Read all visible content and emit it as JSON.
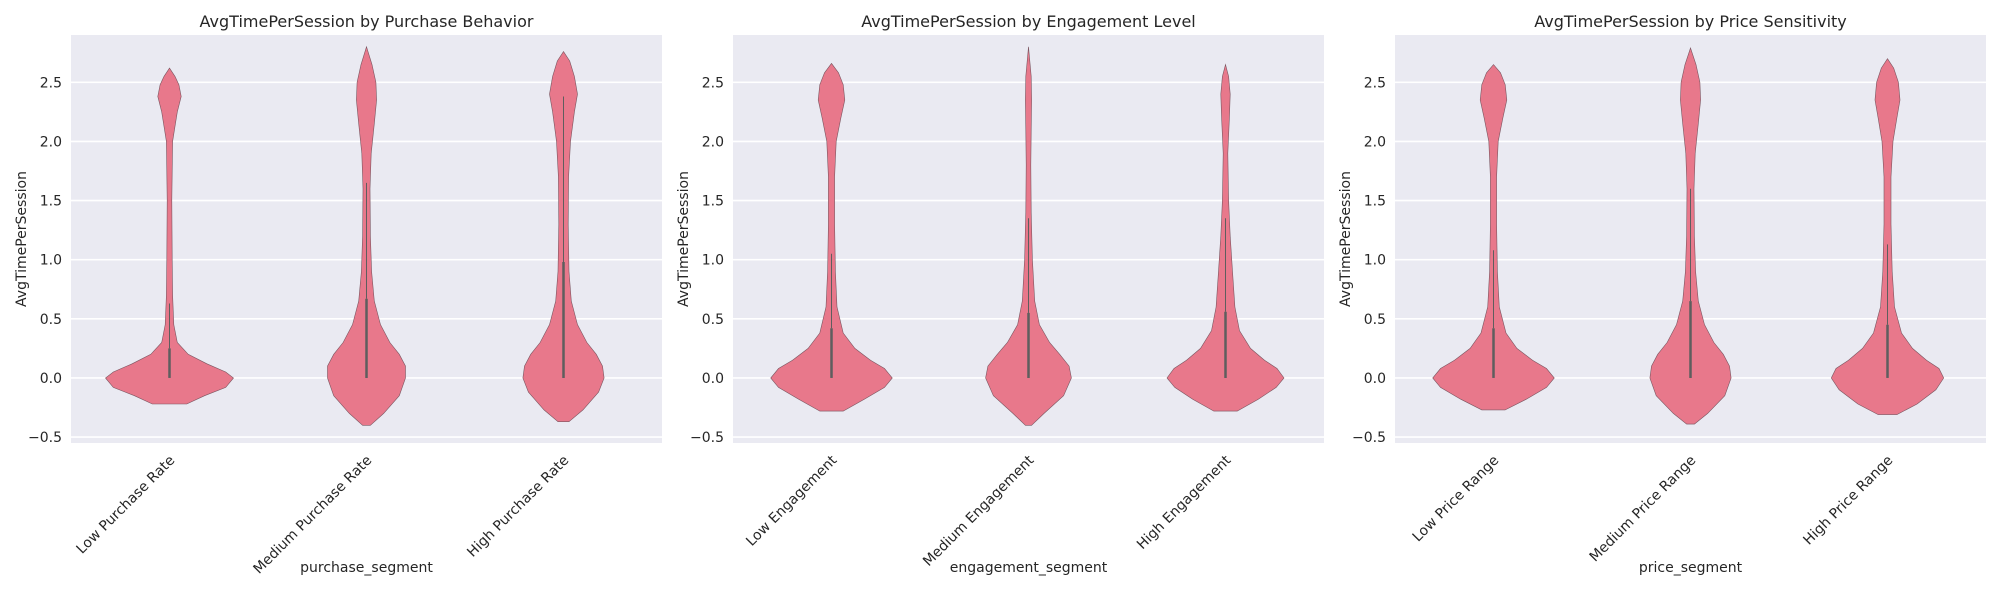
{
  "chart_data": [
    {
      "type": "violin",
      "title": "AvgTimePerSession by Purchase Behavior",
      "xlabel": "purchase_segment",
      "ylabel": "AvgTimePerSession",
      "categories": [
        "Low Purchase Rate",
        "Medium Purchase Rate",
        "High Purchase Rate"
      ],
      "ylim": [
        -0.55,
        2.9
      ],
      "yticks": [
        -0.5,
        0.0,
        0.5,
        1.0,
        1.5,
        2.0,
        2.5
      ],
      "ytick_labels": [
        "−0.5",
        "0.0",
        "0.5",
        "1.0",
        "1.5",
        "2.0",
        "2.5"
      ],
      "grid": true,
      "color": "#e8788b",
      "violins": [
        {
          "min": -0.22,
          "max": 2.62,
          "q1": 0.0,
          "median": 0.02,
          "q3": 0.25,
          "whisker_high": 0.63,
          "profile": [
            [
              -0.22,
              0.22
            ],
            [
              -0.15,
              0.45
            ],
            [
              -0.08,
              0.72
            ],
            [
              0.0,
              0.82
            ],
            [
              0.05,
              0.72
            ],
            [
              0.12,
              0.48
            ],
            [
              0.2,
              0.24
            ],
            [
              0.3,
              0.1
            ],
            [
              0.45,
              0.055
            ],
            [
              0.7,
              0.04
            ],
            [
              1.0,
              0.035
            ],
            [
              1.5,
              0.03
            ],
            [
              2.0,
              0.04
            ],
            [
              2.25,
              0.1
            ],
            [
              2.38,
              0.15
            ],
            [
              2.48,
              0.12
            ],
            [
              2.55,
              0.07
            ],
            [
              2.62,
              0.0
            ]
          ]
        },
        {
          "min": -0.4,
          "max": 2.8,
          "q1": 0.0,
          "median": 0.05,
          "q3": 0.67,
          "whisker_high": 1.65,
          "profile": [
            [
              -0.4,
              0.05
            ],
            [
              -0.3,
              0.22
            ],
            [
              -0.15,
              0.42
            ],
            [
              0.0,
              0.5
            ],
            [
              0.1,
              0.5
            ],
            [
              0.2,
              0.42
            ],
            [
              0.3,
              0.3
            ],
            [
              0.45,
              0.18
            ],
            [
              0.65,
              0.1
            ],
            [
              0.9,
              0.065
            ],
            [
              1.2,
              0.05
            ],
            [
              1.6,
              0.045
            ],
            [
              1.9,
              0.06
            ],
            [
              2.15,
              0.1
            ],
            [
              2.35,
              0.13
            ],
            [
              2.5,
              0.12
            ],
            [
              2.65,
              0.07
            ],
            [
              2.8,
              0.0
            ]
          ]
        },
        {
          "min": -0.37,
          "max": 2.76,
          "q1": 0.0,
          "median": 0.05,
          "q3": 0.98,
          "whisker_high": 2.38,
          "profile": [
            [
              -0.37,
              0.07
            ],
            [
              -0.27,
              0.25
            ],
            [
              -0.12,
              0.45
            ],
            [
              0.0,
              0.52
            ],
            [
              0.1,
              0.5
            ],
            [
              0.2,
              0.42
            ],
            [
              0.3,
              0.3
            ],
            [
              0.45,
              0.18
            ],
            [
              0.65,
              0.1
            ],
            [
              0.9,
              0.07
            ],
            [
              1.3,
              0.06
            ],
            [
              1.7,
              0.065
            ],
            [
              2.0,
              0.09
            ],
            [
              2.25,
              0.14
            ],
            [
              2.4,
              0.18
            ],
            [
              2.55,
              0.14
            ],
            [
              2.68,
              0.08
            ],
            [
              2.76,
              0.0
            ]
          ]
        }
      ]
    },
    {
      "type": "violin",
      "title": "AvgTimePerSession by Engagement Level",
      "xlabel": "engagement_segment",
      "ylabel": "AvgTimePerSession",
      "categories": [
        "Low Engagement",
        "Medium Engagement",
        "High Engagement"
      ],
      "ylim": [
        -0.55,
        2.9
      ],
      "yticks": [
        -0.5,
        0.0,
        0.5,
        1.0,
        1.5,
        2.0,
        2.5
      ],
      "ytick_labels": [
        "−0.5",
        "0.0",
        "0.5",
        "1.0",
        "1.5",
        "2.0",
        "2.5"
      ],
      "grid": true,
      "color": "#e8788b",
      "violins": [
        {
          "min": -0.28,
          "max": 2.66,
          "q1": 0.0,
          "median": 0.02,
          "q3": 0.42,
          "whisker_high": 1.05,
          "profile": [
            [
              -0.28,
              0.15
            ],
            [
              -0.18,
              0.42
            ],
            [
              -0.08,
              0.68
            ],
            [
              0.0,
              0.78
            ],
            [
              0.08,
              0.68
            ],
            [
              0.15,
              0.5
            ],
            [
              0.25,
              0.3
            ],
            [
              0.38,
              0.15
            ],
            [
              0.6,
              0.07
            ],
            [
              0.9,
              0.05
            ],
            [
              1.3,
              0.04
            ],
            [
              1.7,
              0.04
            ],
            [
              2.0,
              0.06
            ],
            [
              2.2,
              0.12
            ],
            [
              2.35,
              0.17
            ],
            [
              2.48,
              0.15
            ],
            [
              2.58,
              0.09
            ],
            [
              2.66,
              0.0
            ]
          ]
        },
        {
          "min": -0.4,
          "max": 2.8,
          "q1": 0.0,
          "median": 0.03,
          "q3": 0.55,
          "whisker_high": 1.35,
          "profile": [
            [
              -0.4,
              0.04
            ],
            [
              -0.3,
              0.2
            ],
            [
              -0.15,
              0.45
            ],
            [
              0.0,
              0.55
            ],
            [
              0.1,
              0.52
            ],
            [
              0.2,
              0.4
            ],
            [
              0.3,
              0.27
            ],
            [
              0.45,
              0.14
            ],
            [
              0.65,
              0.08
            ],
            [
              1.0,
              0.05
            ],
            [
              1.4,
              0.035
            ],
            [
              1.8,
              0.03
            ],
            [
              2.1,
              0.035
            ],
            [
              2.35,
              0.04
            ],
            [
              2.55,
              0.035
            ],
            [
              2.8,
              0.0
            ]
          ]
        },
        {
          "min": -0.28,
          "max": 2.65,
          "q1": 0.0,
          "median": 0.03,
          "q3": 0.56,
          "whisker_high": 1.35,
          "profile": [
            [
              -0.28,
              0.15
            ],
            [
              -0.18,
              0.42
            ],
            [
              -0.08,
              0.65
            ],
            [
              0.0,
              0.75
            ],
            [
              0.08,
              0.66
            ],
            [
              0.15,
              0.5
            ],
            [
              0.25,
              0.32
            ],
            [
              0.4,
              0.18
            ],
            [
              0.6,
              0.12
            ],
            [
              0.9,
              0.09
            ],
            [
              1.2,
              0.06
            ],
            [
              1.5,
              0.04
            ],
            [
              1.9,
              0.03
            ],
            [
              2.2,
              0.05
            ],
            [
              2.4,
              0.06
            ],
            [
              2.55,
              0.04
            ],
            [
              2.65,
              0.0
            ]
          ]
        }
      ]
    },
    {
      "type": "violin",
      "title": "AvgTimePerSession by Price Sensitivity",
      "xlabel": "price_segment",
      "ylabel": "AvgTimePerSession",
      "categories": [
        "Low Price Range",
        "Medium Price Range",
        "High Price Range"
      ],
      "ylim": [
        -0.55,
        2.9
      ],
      "yticks": [
        -0.5,
        0.0,
        0.5,
        1.0,
        1.5,
        2.0,
        2.5
      ],
      "ytick_labels": [
        "−0.5",
        "0.0",
        "0.5",
        "1.0",
        "1.5",
        "2.0",
        "2.5"
      ],
      "grid": true,
      "color": "#e8788b",
      "violins": [
        {
          "min": -0.27,
          "max": 2.65,
          "q1": 0.0,
          "median": 0.02,
          "q3": 0.42,
          "whisker_high": 1.08,
          "profile": [
            [
              -0.27,
              0.15
            ],
            [
              -0.18,
              0.42
            ],
            [
              -0.08,
              0.68
            ],
            [
              0.0,
              0.78
            ],
            [
              0.08,
              0.68
            ],
            [
              0.15,
              0.5
            ],
            [
              0.25,
              0.3
            ],
            [
              0.38,
              0.16
            ],
            [
              0.6,
              0.075
            ],
            [
              0.9,
              0.05
            ],
            [
              1.3,
              0.04
            ],
            [
              1.7,
              0.04
            ],
            [
              2.0,
              0.06
            ],
            [
              2.2,
              0.12
            ],
            [
              2.35,
              0.17
            ],
            [
              2.48,
              0.15
            ],
            [
              2.58,
              0.09
            ],
            [
              2.65,
              0.0
            ]
          ]
        },
        {
          "min": -0.39,
          "max": 2.79,
          "q1": 0.0,
          "median": 0.04,
          "q3": 0.65,
          "whisker_high": 1.6,
          "profile": [
            [
              -0.39,
              0.05
            ],
            [
              -0.3,
              0.22
            ],
            [
              -0.15,
              0.44
            ],
            [
              0.0,
              0.52
            ],
            [
              0.1,
              0.5
            ],
            [
              0.2,
              0.42
            ],
            [
              0.3,
              0.3
            ],
            [
              0.45,
              0.18
            ],
            [
              0.65,
              0.1
            ],
            [
              0.9,
              0.065
            ],
            [
              1.2,
              0.05
            ],
            [
              1.6,
              0.045
            ],
            [
              1.9,
              0.06
            ],
            [
              2.15,
              0.1
            ],
            [
              2.35,
              0.13
            ],
            [
              2.5,
              0.12
            ],
            [
              2.65,
              0.07
            ],
            [
              2.79,
              0.0
            ]
          ]
        },
        {
          "min": -0.31,
          "max": 2.7,
          "q1": 0.0,
          "median": 0.03,
          "q3": 0.45,
          "whisker_high": 1.13,
          "profile": [
            [
              -0.31,
              0.12
            ],
            [
              -0.22,
              0.38
            ],
            [
              -0.1,
              0.62
            ],
            [
              0.0,
              0.72
            ],
            [
              0.08,
              0.66
            ],
            [
              0.15,
              0.5
            ],
            [
              0.25,
              0.32
            ],
            [
              0.38,
              0.18
            ],
            [
              0.6,
              0.09
            ],
            [
              0.9,
              0.06
            ],
            [
              1.3,
              0.045
            ],
            [
              1.7,
              0.045
            ],
            [
              2.0,
              0.07
            ],
            [
              2.2,
              0.12
            ],
            [
              2.35,
              0.16
            ],
            [
              2.5,
              0.14
            ],
            [
              2.62,
              0.08
            ],
            [
              2.7,
              0.0
            ]
          ]
        }
      ]
    }
  ]
}
